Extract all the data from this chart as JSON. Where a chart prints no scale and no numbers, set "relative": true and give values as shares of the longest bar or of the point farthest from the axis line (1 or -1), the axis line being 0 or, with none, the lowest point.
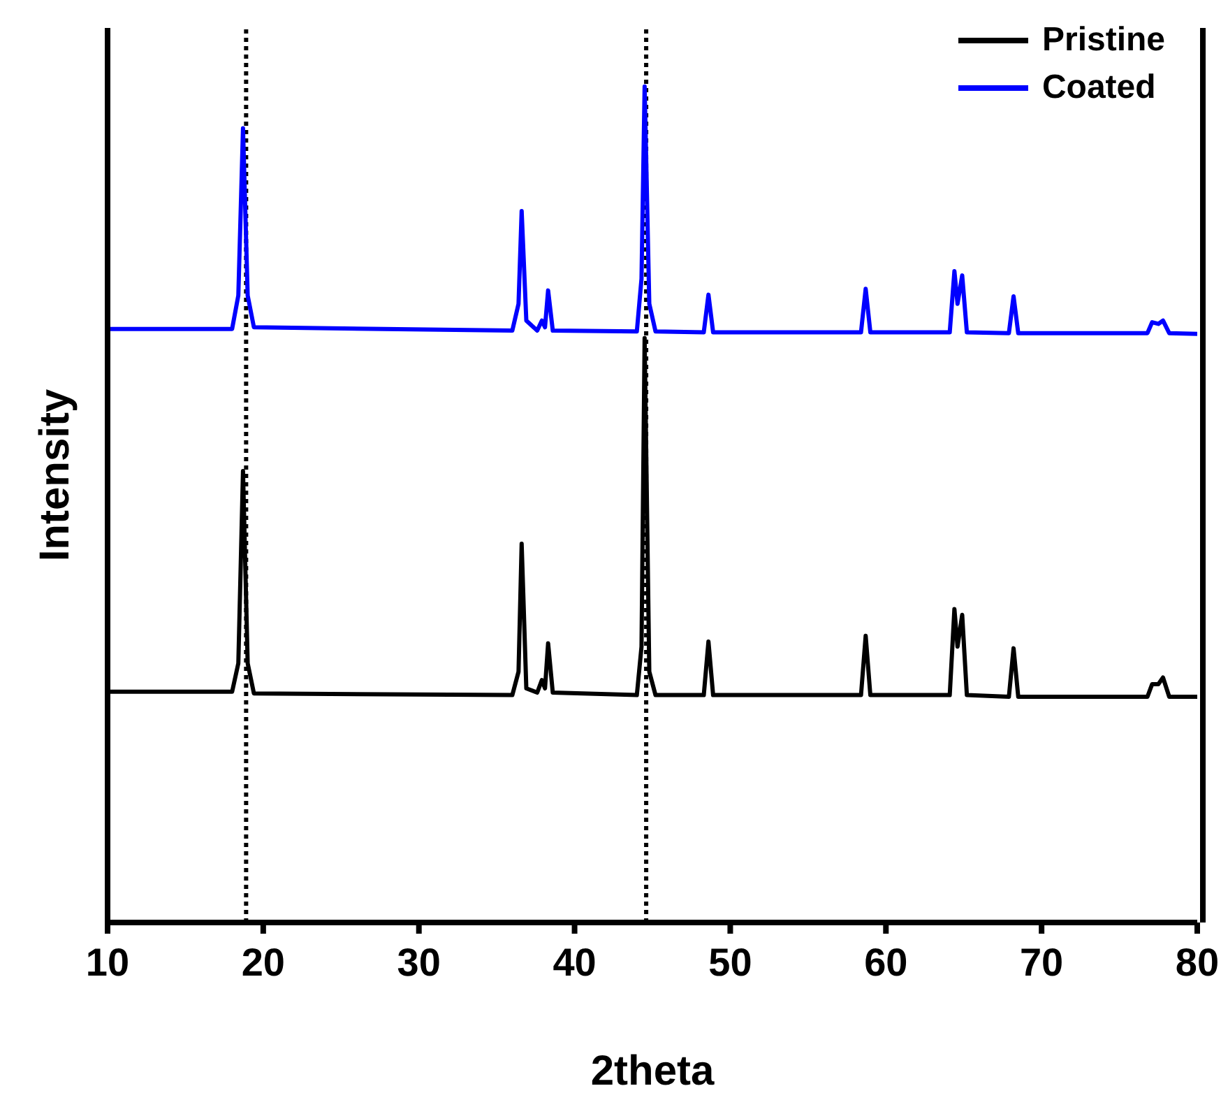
{
  "chart_data": {
    "type": "line",
    "xlabel": "2theta",
    "ylabel": "Intensity",
    "relative": true,
    "xlim": [
      10,
      80
    ],
    "xticks": [
      10,
      20,
      30,
      40,
      50,
      60,
      70,
      80
    ],
    "legend": "top right",
    "grid": false,
    "marker": "none",
    "line_style": "solid",
    "ref_lines": [
      {
        "axis": "x",
        "value": 18.9,
        "line_style": "dotted",
        "color": "#000000"
      },
      {
        "axis": "x",
        "value": 44.6,
        "line_style": "dotted",
        "color": "#000000"
      }
    ],
    "series": [
      {
        "name": "Pristine",
        "color": "#000000",
        "x": [
          10,
          18.0,
          18.4,
          18.7,
          19.0,
          19.4,
          36.0,
          36.4,
          36.6,
          36.9,
          37.6,
          37.9,
          38.1,
          38.3,
          38.6,
          44.0,
          44.3,
          44.5,
          44.8,
          45.2,
          48.3,
          48.6,
          48.9,
          58.4,
          58.7,
          59.0,
          64.1,
          64.4,
          64.6,
          64.9,
          65.2,
          67.9,
          68.2,
          68.5,
          76.8,
          77.1,
          77.5,
          77.8,
          78.2,
          80
        ],
        "values": [
          0.276,
          0.276,
          0.31,
          0.54,
          0.31,
          0.274,
          0.272,
          0.3,
          0.453,
          0.28,
          0.275,
          0.29,
          0.28,
          0.334,
          0.275,
          0.272,
          0.33,
          0.699,
          0.3,
          0.272,
          0.272,
          0.336,
          0.272,
          0.272,
          0.343,
          0.272,
          0.272,
          0.375,
          0.33,
          0.368,
          0.272,
          0.27,
          0.328,
          0.27,
          0.27,
          0.285,
          0.285,
          0.293,
          0.27,
          0.27
        ]
      },
      {
        "name": "Coated",
        "color": "#0000ff",
        "x": [
          10,
          18.0,
          18.4,
          18.7,
          19.0,
          19.4,
          36.0,
          36.4,
          36.6,
          36.9,
          37.6,
          37.9,
          38.1,
          38.3,
          38.6,
          44.0,
          44.3,
          44.5,
          44.8,
          45.2,
          48.3,
          48.6,
          48.9,
          58.4,
          58.7,
          59.0,
          64.1,
          64.4,
          64.6,
          64.9,
          65.2,
          67.9,
          68.2,
          68.5,
          76.8,
          77.1,
          77.5,
          77.8,
          78.2,
          80
        ],
        "values": [
          0.71,
          0.71,
          0.75,
          0.95,
          0.75,
          0.712,
          0.708,
          0.74,
          0.851,
          0.72,
          0.708,
          0.72,
          0.712,
          0.756,
          0.708,
          0.707,
          0.77,
          1,
          0.74,
          0.707,
          0.706,
          0.751,
          0.706,
          0.706,
          0.758,
          0.706,
          0.706,
          0.779,
          0.74,
          0.774,
          0.706,
          0.705,
          0.749,
          0.705,
          0.705,
          0.718,
          0.716,
          0.72,
          0.705,
          0.704
        ]
      }
    ]
  }
}
